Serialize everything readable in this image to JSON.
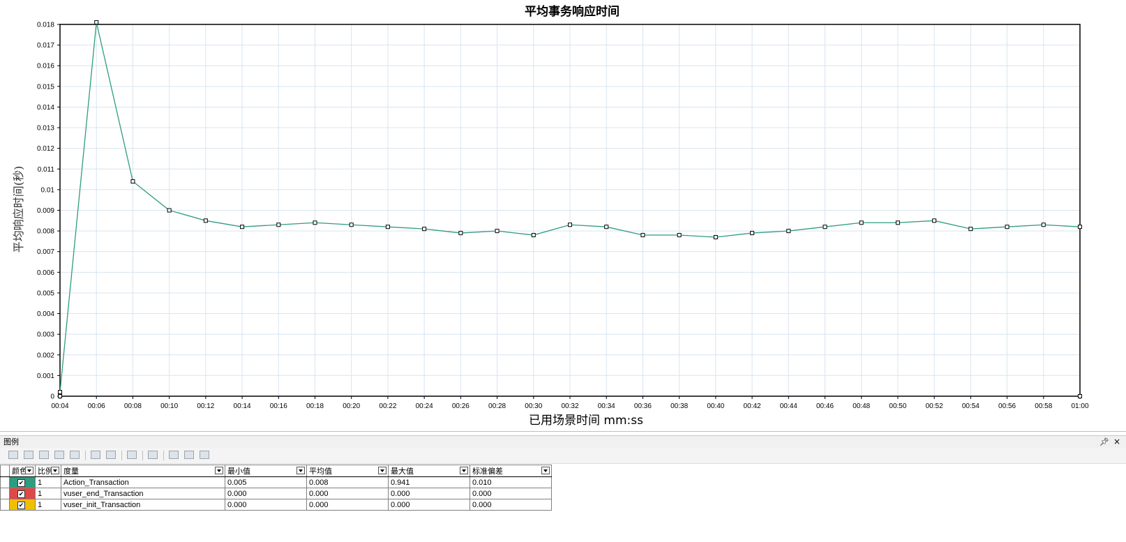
{
  "chart_data": {
    "type": "line",
    "title": "平均事务响应时间",
    "xlabel": "已用场景时间 mm:ss",
    "ylabel": "平均响应时间(秒)",
    "ylim": [
      0,
      0.018
    ],
    "yticks": [
      "0",
      "0.001",
      "0.002",
      "0.003",
      "0.004",
      "0.005",
      "0.006",
      "0.007",
      "0.008",
      "0.009",
      "0.01",
      "0.011",
      "0.012",
      "0.013",
      "0.014",
      "0.015",
      "0.016",
      "0.017",
      "0.018"
    ],
    "xticks": [
      "00:04",
      "00:06",
      "00:08",
      "00:10",
      "00:12",
      "00:14",
      "00:16",
      "00:18",
      "00:20",
      "00:22",
      "00:24",
      "00:26",
      "00:28",
      "00:30",
      "00:32",
      "00:34",
      "00:36",
      "00:38",
      "00:40",
      "00:42",
      "00:44",
      "00:46",
      "00:48",
      "00:50",
      "00:52",
      "00:54",
      "00:56",
      "00:58",
      "01:00"
    ],
    "grid": true,
    "series": [
      {
        "name": "Action_Transaction",
        "color": "#2e9c7f",
        "x": [
          "00:04",
          "00:06",
          "00:08",
          "00:10",
          "00:12",
          "00:14",
          "00:16",
          "00:18",
          "00:20",
          "00:22",
          "00:24",
          "00:26",
          "00:28",
          "00:30",
          "00:32",
          "00:34",
          "00:36",
          "00:38",
          "00:40",
          "00:42",
          "00:44",
          "00:46",
          "00:48",
          "00:50",
          "00:52",
          "00:54",
          "00:56",
          "00:58",
          "01:00"
        ],
        "values": [
          0.0002,
          0.0181,
          0.0104,
          0.009,
          0.0085,
          0.0082,
          0.0083,
          0.0084,
          0.0083,
          0.0082,
          0.0081,
          0.0079,
          0.008,
          0.0078,
          0.0083,
          0.0082,
          0.0078,
          0.0078,
          0.0077,
          0.0079,
          0.008,
          0.0082,
          0.0084,
          0.0084,
          0.0085,
          0.0081,
          0.0082,
          0.0083,
          0.0082
        ]
      },
      {
        "name": "vuser_end_Transaction",
        "color": "#e04848",
        "x": [
          "01:00"
        ],
        "values": [
          0.0
        ]
      },
      {
        "name": "vuser_init_Transaction",
        "color": "#f0c000",
        "x": [
          "00:04"
        ],
        "values": [
          0.0
        ]
      }
    ]
  },
  "legend_panel": {
    "title": "图例",
    "pin_icon": "pin-icon",
    "close_label": "×",
    "columns": [
      "颜色",
      "比例",
      "度量",
      "最小值",
      "平均值",
      "最大值",
      "标准偏差"
    ],
    "rows": [
      {
        "color": "#2e9c7f",
        "checked": "✔",
        "scale": "1",
        "measure": "Action_Transaction",
        "min": "0.005",
        "avg": "0.008",
        "max": "0.941",
        "std": "0.010"
      },
      {
        "color": "#e04848",
        "checked": "✔",
        "scale": "1",
        "measure": "vuser_end_Transaction",
        "min": "0.000",
        "avg": "0.000",
        "max": "0.000",
        "std": "0.000"
      },
      {
        "color": "#f0c000",
        "checked": "✔",
        "scale": "1",
        "measure": "vuser_init_Transaction",
        "min": "0.000",
        "avg": "0.000",
        "max": "0.000",
        "std": "0.000"
      }
    ]
  }
}
